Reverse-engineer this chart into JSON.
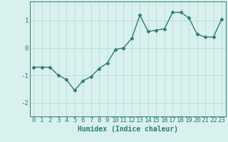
{
  "xlabel": "Humidex (Indice chaleur)",
  "ylabel": "",
  "x_values": [
    0,
    1,
    2,
    3,
    4,
    5,
    6,
    7,
    8,
    9,
    10,
    11,
    12,
    13,
    14,
    15,
    16,
    17,
    18,
    19,
    20,
    21,
    22,
    23
  ],
  "y_values": [
    -0.7,
    -0.7,
    -0.7,
    -1.0,
    -1.15,
    -1.55,
    -1.2,
    -1.05,
    -0.75,
    -0.55,
    -0.05,
    0.0,
    0.35,
    1.2,
    0.6,
    0.65,
    0.7,
    1.3,
    1.3,
    1.1,
    0.5,
    0.4,
    0.4,
    1.05
  ],
  "line_color": "#2e7d6e",
  "marker": "D",
  "marker_size": 2.5,
  "bg_color": "#d8f0ee",
  "grid_color": "#b8dcd8",
  "tick_color": "#2e7d6e",
  "label_color": "#2e7d6e",
  "ylim": [
    -2.5,
    1.7
  ],
  "xlim": [
    -0.5,
    23.5
  ],
  "yticks": [
    -2,
    -1,
    0,
    1
  ],
  "xticks": [
    0,
    1,
    2,
    3,
    4,
    5,
    6,
    7,
    8,
    9,
    10,
    11,
    12,
    13,
    14,
    15,
    16,
    17,
    18,
    19,
    20,
    21,
    22,
    23
  ],
  "xlabel_fontsize": 7,
  "tick_fontsize": 6.5,
  "line_width": 1.0
}
